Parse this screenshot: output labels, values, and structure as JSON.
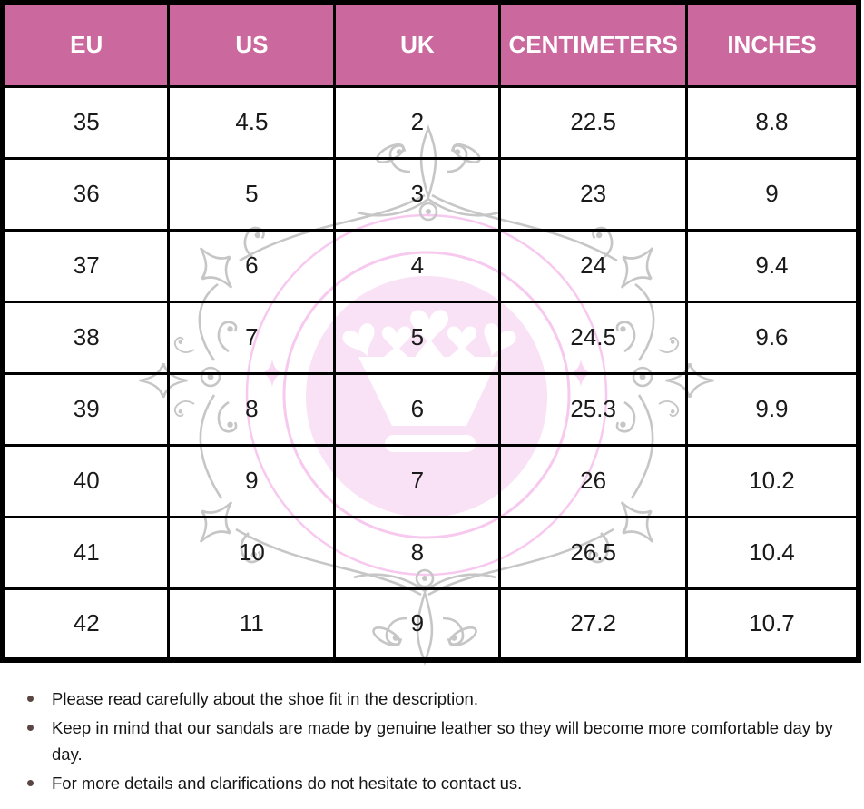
{
  "table": {
    "columns": [
      "EU",
      "US",
      "UK",
      "CENTIMETERS",
      "INCHES"
    ],
    "rows": [
      [
        "35",
        "4.5",
        "2",
        "22.5",
        "8.8"
      ],
      [
        "36",
        "5",
        "3",
        "23",
        "9"
      ],
      [
        "37",
        "6",
        "4",
        "24",
        "9.4"
      ],
      [
        "38",
        "7",
        "5",
        "24.5",
        "9.6"
      ],
      [
        "39",
        "8",
        "6",
        "25.3",
        "9.9"
      ],
      [
        "40",
        "9",
        "7",
        "26",
        "10.2"
      ],
      [
        "41",
        "10",
        "8",
        "26.5",
        "10.4"
      ],
      [
        "42",
        "11",
        "9",
        "27.2",
        "10.7"
      ]
    ]
  },
  "chart_data": {
    "type": "table",
    "title": "Shoe size conversion chart",
    "columns": [
      "EU",
      "US",
      "UK",
      "CENTIMETERS",
      "INCHES"
    ],
    "rows": [
      [
        35,
        4.5,
        2,
        22.5,
        8.8
      ],
      [
        36,
        5,
        3,
        23,
        9
      ],
      [
        37,
        6,
        4,
        24,
        9.4
      ],
      [
        38,
        7,
        5,
        24.5,
        9.6
      ],
      [
        39,
        8,
        6,
        25.3,
        9.9
      ],
      [
        40,
        9,
        7,
        26,
        10.2
      ],
      [
        41,
        10,
        8,
        26.5,
        10.4
      ],
      [
        42,
        11,
        9,
        27.2,
        10.7
      ]
    ]
  },
  "notes": {
    "items": [
      "Please read carefully about the shoe fit in the description.",
      "Keep in mind that our sandals are made by genuine leather so they will become more comfortable day by day.",
      "For more details and clarifications do not hesitate to contact us."
    ]
  },
  "watermark": {
    "description": "crown logo watermark"
  },
  "colors": {
    "header_bg": "#cb699e",
    "header_text": "#ffffff",
    "border": "#000000",
    "cell_text": "#1a1a1a",
    "bullet": "#5a4743",
    "wm_gray": "#c6c6c6",
    "wm_pink_disc": "#f9e2f6",
    "wm_pink_ring": "#f7c9ef",
    "wm_pink_sparkle": "#f9d7f3"
  }
}
